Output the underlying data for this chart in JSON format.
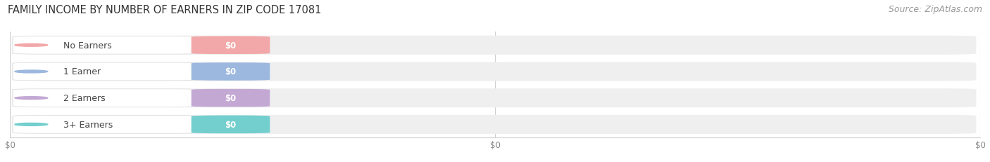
{
  "title": "FAMILY INCOME BY NUMBER OF EARNERS IN ZIP CODE 17081",
  "source_text": "Source: ZipAtlas.com",
  "categories": [
    "No Earners",
    "1 Earner",
    "2 Earners",
    "3+ Earners"
  ],
  "values": [
    0,
    0,
    0,
    0
  ],
  "bar_colors": [
    "#f2a8a8",
    "#9db8df",
    "#c4a8d4",
    "#73cece"
  ],
  "background_color": "#ffffff",
  "bar_bg_color": "#efefef",
  "title_fontsize": 10.5,
  "source_fontsize": 9,
  "cat_fontsize": 9,
  "val_fontsize": 8.5
}
